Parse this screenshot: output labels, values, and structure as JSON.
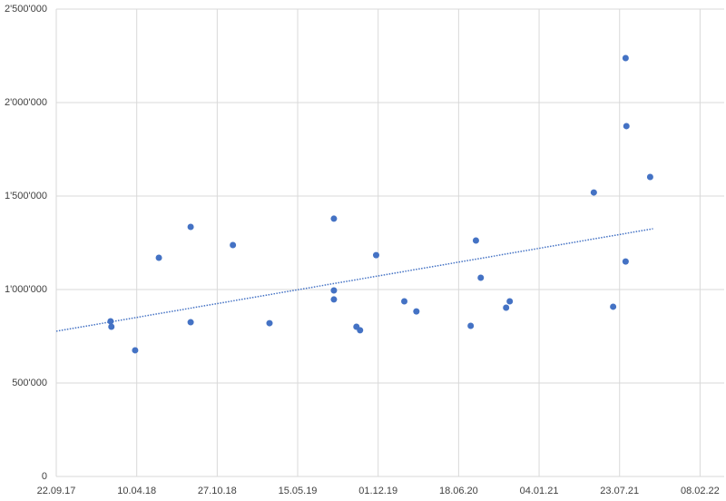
{
  "chart_data": {
    "type": "scatter",
    "x": [
      43135,
      43137,
      43196,
      43255,
      43334,
      43334,
      43439,
      43530,
      43690,
      43690,
      43690,
      43746,
      43755,
      43795,
      43865,
      43895,
      44030,
      44043,
      44055,
      44118,
      44127,
      44336,
      44384,
      44415,
      44417,
      44415,
      44476
    ],
    "values": [
      830000,
      801000,
      675000,
      1170000,
      1335000,
      825000,
      1238000,
      820000,
      1379000,
      995000,
      947000,
      801000,
      782000,
      1184000,
      937000,
      883000,
      806000,
      1262000,
      1063000,
      903000,
      937000,
      1519000,
      908000,
      2238000,
      1874000,
      1150000,
      1602000
    ],
    "color": "#4472c4",
    "trendline": {
      "x": [
        43000,
        44483
      ],
      "values": [
        777000,
        1325000
      ],
      "color": "#4472c4"
    },
    "xlim": [
      43000,
      44660
    ],
    "xticks": [
      {
        "value": 43000,
        "label": "22.09.17"
      },
      {
        "value": 43200,
        "label": "10.04.18"
      },
      {
        "value": 43400,
        "label": "27.10.18"
      },
      {
        "value": 43600,
        "label": "15.05.19"
      },
      {
        "value": 43800,
        "label": "01.12.19"
      },
      {
        "value": 44000,
        "label": "18.06.20"
      },
      {
        "value": 44200,
        "label": "04.01.21"
      },
      {
        "value": 44400,
        "label": "23.07.21"
      },
      {
        "value": 44600,
        "label": "08.02.22"
      }
    ],
    "ylim": [
      0,
      2500000
    ],
    "yticks": [
      0,
      {
        "value": 500000,
        "label": "500'000"
      },
      {
        "value": 1000000,
        "label": "1'000'000"
      },
      {
        "value": 1500000,
        "label": "1'500'000"
      },
      {
        "value": 2000000,
        "label": "2'000'000"
      },
      {
        "value": 2500000,
        "label": "2'500'000"
      }
    ],
    "grid": true
  }
}
